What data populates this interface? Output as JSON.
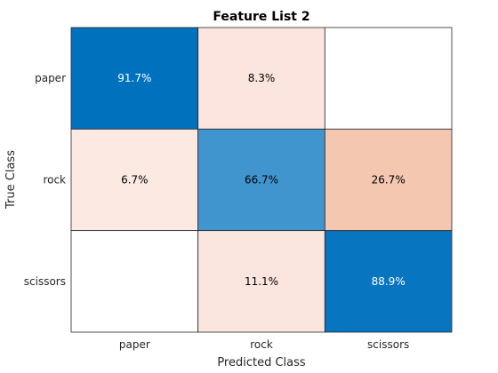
{
  "chart_data": {
    "type": "heatmap",
    "title": "Feature List 2",
    "xlabel": "Predicted Class",
    "ylabel": "True Class",
    "x_categories": [
      "paper",
      "rock",
      "scissors"
    ],
    "y_categories": [
      "paper",
      "rock",
      "scissors"
    ],
    "values": [
      [
        91.7,
        8.3,
        null
      ],
      [
        6.7,
        66.7,
        26.7
      ],
      [
        null,
        11.1,
        88.9
      ]
    ],
    "labels": [
      [
        "91.7%",
        "8.3%",
        ""
      ],
      [
        "6.7%",
        "66.7%",
        "26.7%"
      ],
      [
        "",
        "11.1%",
        "88.9%"
      ]
    ],
    "cell_colors": [
      [
        "#0072bd",
        "#fbe5de",
        "#ffffff"
      ],
      [
        "#fbe9e2",
        "#4195cf",
        "#f4c7b1"
      ],
      [
        "#ffffff",
        "#fbe6df",
        "#0775bf"
      ]
    ],
    "label_colors": [
      [
        "#ffffff",
        "#000000",
        "#000000"
      ],
      [
        "#000000",
        "#000000",
        "#000000"
      ],
      [
        "#000000",
        "#000000",
        "#ffffff"
      ]
    ],
    "grid": true
  }
}
